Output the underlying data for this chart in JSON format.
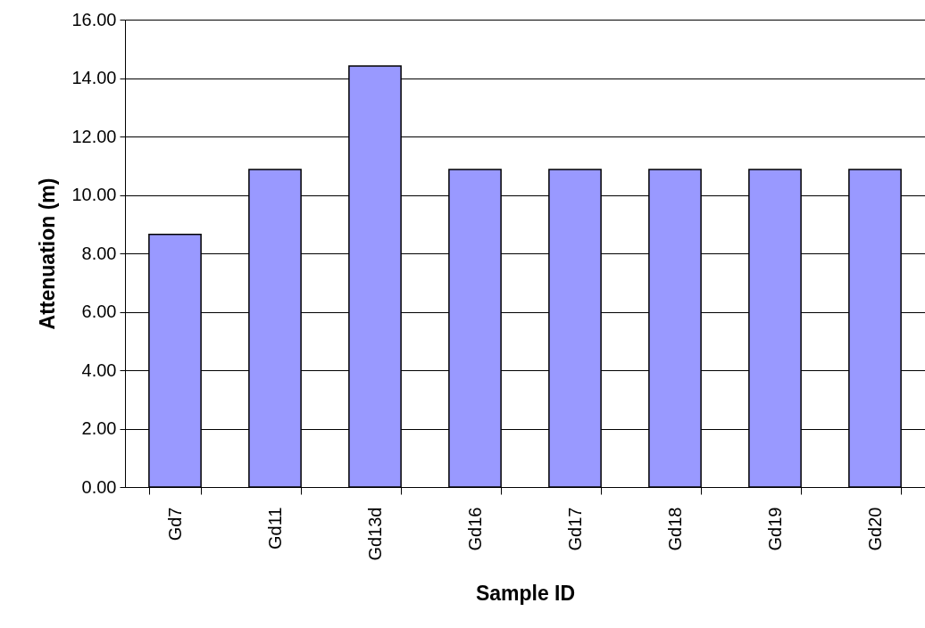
{
  "chart_data": {
    "type": "bar",
    "xlabel": "Sample ID",
    "ylabel": "Attenuation (m)",
    "categories": [
      "Gd7",
      "Gd11",
      "Gd13d",
      "Gd16",
      "Gd17",
      "Gd18",
      "Gd19",
      "Gd20"
    ],
    "values": [
      8.65,
      10.87,
      14.41,
      10.87,
      10.87,
      10.87,
      10.87,
      10.87
    ],
    "color": "#9999ff",
    "ylim": [
      0,
      16
    ],
    "yticks": [
      {
        "value": 0,
        "label": "0.00"
      },
      {
        "value": 2,
        "label": "2.00"
      },
      {
        "value": 4,
        "label": "4.00"
      },
      {
        "value": 6,
        "label": "6.00"
      },
      {
        "value": 8,
        "label": "8.00"
      },
      {
        "value": 10,
        "label": "10.00"
      },
      {
        "value": 12,
        "label": "12.00"
      },
      {
        "value": 14,
        "label": "14.00"
      },
      {
        "value": 16,
        "label": "16.00"
      }
    ],
    "grid": "y"
  }
}
